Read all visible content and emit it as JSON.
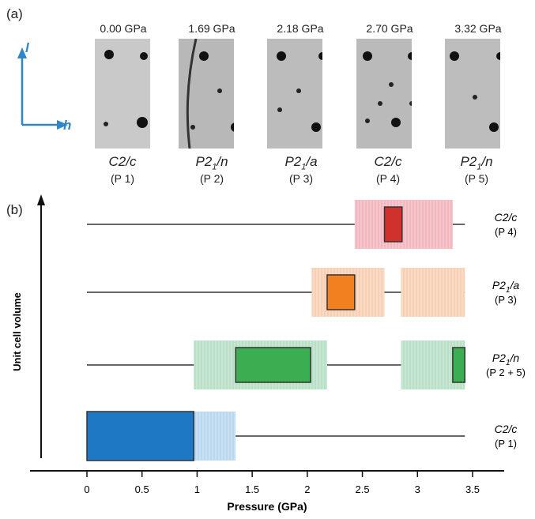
{
  "panel_a": {
    "label": "(a)",
    "axes": {
      "vertical": "l",
      "horizontal": "h",
      "color": "#2f86c8"
    },
    "images": [
      {
        "pressure": "0.00 GPa",
        "space_group": "C2/c",
        "phase": "(P 1)"
      },
      {
        "pressure": "1.69 GPa",
        "space_group": "P21/n",
        "phase": "(P 2)"
      },
      {
        "pressure": "2.18 GPa",
        "space_group": "P21/a",
        "phase": "(P 3)"
      },
      {
        "pressure": "2.70 GPa",
        "space_group": "C2/c",
        "phase": "(P 4)"
      },
      {
        "pressure": "3.32 GPa",
        "space_group": "P21/n",
        "phase": "(P 5)"
      }
    ]
  },
  "panel_b": {
    "label": "(b)",
    "chart_data": {
      "type": "bar",
      "orientation": "horizontal-range",
      "xlabel": "Pressure (GPa)",
      "ylabel": "Unit cell volume",
      "xlim": [
        0,
        3.5
      ],
      "xticks": [
        "0",
        "0.5",
        "1",
        "1.5",
        "2",
        "2.5",
        "3",
        "3.5"
      ],
      "rows": [
        {
          "name": "C2/c (P 4)",
          "label_sg": "C2/c",
          "label_phase": "(P 4)",
          "line": [
            0,
            3.43
          ],
          "light_ranges": [
            [
              2.43,
              3.32
            ]
          ],
          "solid_ranges": [
            [
              2.7,
              2.86
            ]
          ],
          "color_light": "#f4b6bf",
          "color_solid": "#d0312d"
        },
        {
          "name": "P21/a (P 3)",
          "label_sg": "P21/a",
          "label_phase": "(P 3)",
          "line": [
            0,
            3.43
          ],
          "light_ranges": [
            [
              2.04,
              2.7
            ],
            [
              2.85,
              3.43
            ]
          ],
          "solid_ranges": [
            [
              2.18,
              2.43
            ]
          ],
          "color_light": "#f7cfb2",
          "color_solid": "#f2801f"
        },
        {
          "name": "P21/n (P 2 + 5)",
          "label_sg": "P21/n",
          "label_phase": "(P 2 + 5)",
          "line": [
            0,
            3.43
          ],
          "light_ranges": [
            [
              0.97,
              2.18
            ],
            [
              2.85,
              3.43
            ]
          ],
          "solid_ranges": [
            [
              1.35,
              2.03
            ],
            [
              3.32,
              3.43
            ]
          ],
          "color_light": "#b8e0c6",
          "color_solid": "#3bae52"
        },
        {
          "name": "C2/c (P 1)",
          "label_sg": "C2/c",
          "label_phase": "(P 1)",
          "line": [
            0,
            3.43
          ],
          "light_ranges": [
            [
              0.97,
              1.35
            ]
          ],
          "solid_ranges": [
            [
              0,
              0.97
            ]
          ],
          "color_light": "#b9d7ee",
          "color_solid": "#1f78c4"
        }
      ]
    }
  }
}
